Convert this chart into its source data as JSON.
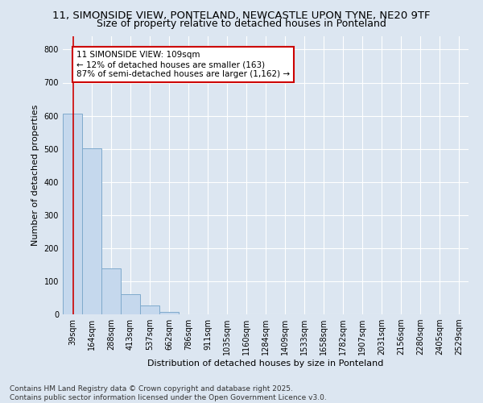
{
  "title_line1": "11, SIMONSIDE VIEW, PONTELAND, NEWCASTLE UPON TYNE, NE20 9TF",
  "title_line2": "Size of property relative to detached houses in Ponteland",
  "xlabel": "Distribution of detached houses by size in Ponteland",
  "ylabel": "Number of detached properties",
  "categories": [
    "39sqm",
    "164sqm",
    "288sqm",
    "413sqm",
    "537sqm",
    "662sqm",
    "786sqm",
    "911sqm",
    "1035sqm",
    "1160sqm",
    "1284sqm",
    "1409sqm",
    "1533sqm",
    "1658sqm",
    "1782sqm",
    "1907sqm",
    "2031sqm",
    "2156sqm",
    "2280sqm",
    "2405sqm",
    "2529sqm"
  ],
  "values": [
    607,
    502,
    140,
    62,
    27,
    7,
    0,
    0,
    0,
    0,
    0,
    0,
    0,
    0,
    0,
    0,
    0,
    0,
    0,
    0,
    0
  ],
  "bar_color": "#c5d8ed",
  "bar_edge_color": "#7faacc",
  "vline_color": "#cc0000",
  "vline_pos": 0.56,
  "annotation_text": "11 SIMONSIDE VIEW: 109sqm\n← 12% of detached houses are smaller (163)\n87% of semi-detached houses are larger (1,162) →",
  "annotation_box_color": "#ffffff",
  "annotation_box_edge": "#cc0000",
  "ylim": [
    0,
    840
  ],
  "yticks": [
    0,
    100,
    200,
    300,
    400,
    500,
    600,
    700,
    800
  ],
  "background_color": "#dce6f1",
  "plot_bg_color": "#dce6f1",
  "footer_text": "Contains HM Land Registry data © Crown copyright and database right 2025.\nContains public sector information licensed under the Open Government Licence v3.0.",
  "title_fontsize": 9.5,
  "subtitle_fontsize": 9,
  "axis_label_fontsize": 8,
  "tick_fontsize": 7,
  "annotation_fontsize": 7.5,
  "footer_fontsize": 6.5
}
